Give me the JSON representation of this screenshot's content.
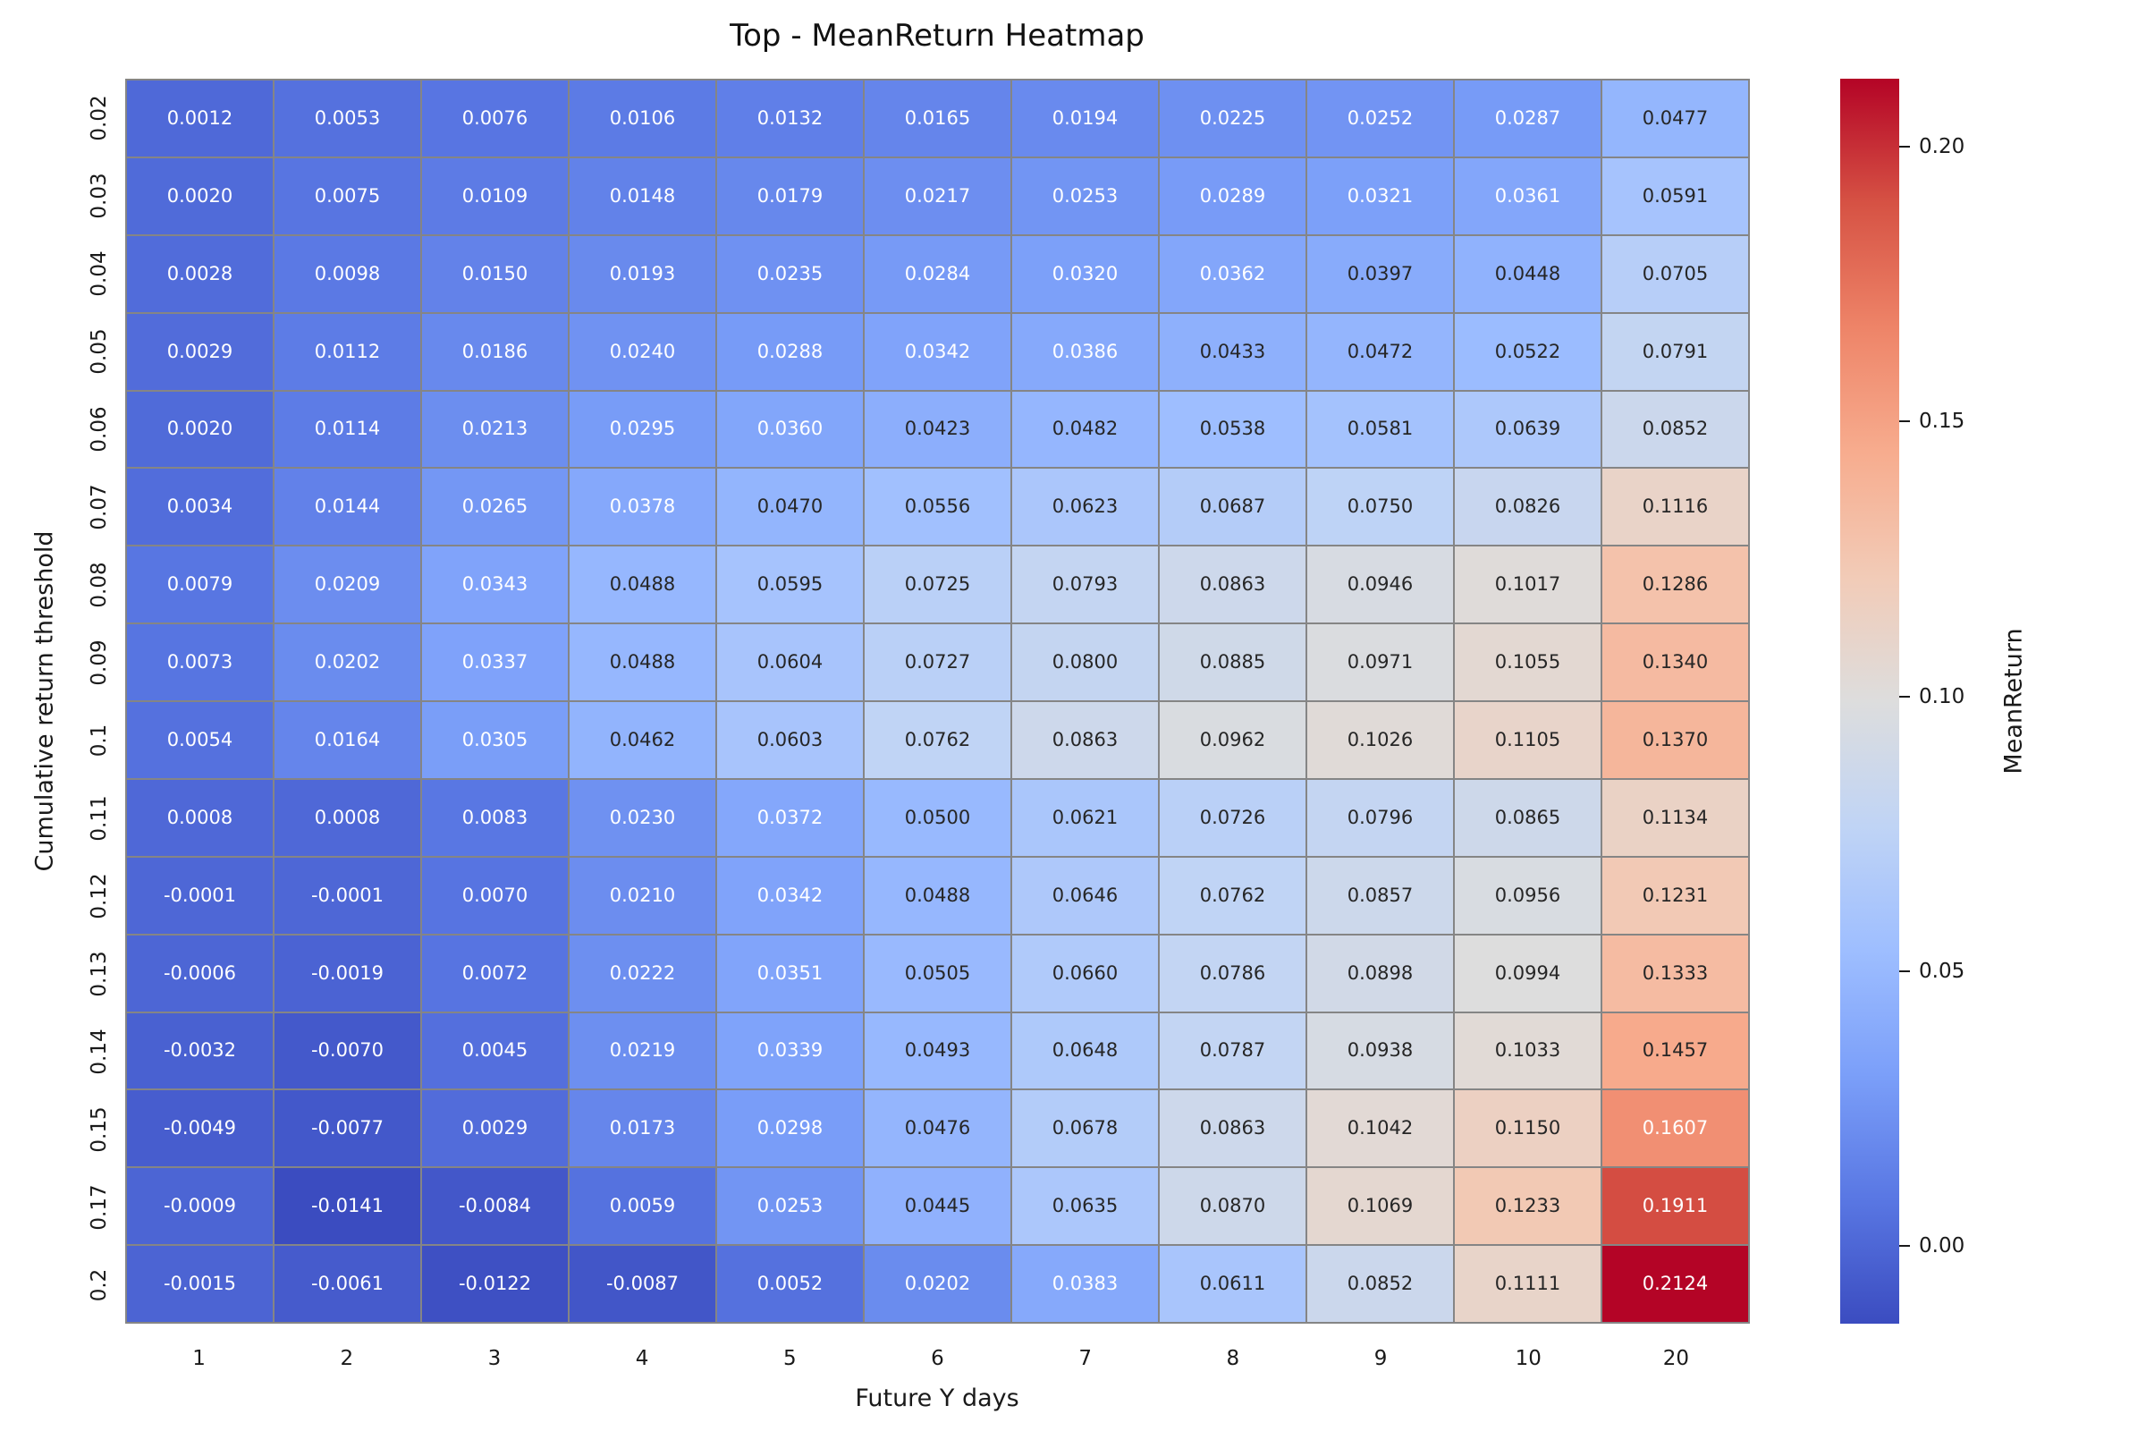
{
  "chart_data": {
    "type": "heatmap",
    "title": "Top - MeanReturn Heatmap",
    "xlabel": "Future Y days",
    "ylabel": "Cumulative return threshold",
    "colorbar_label": "MeanReturn",
    "colorbar_tick_labels": [
      "0.20",
      "0.15",
      "0.10",
      "0.05",
      "0.00"
    ],
    "colorbar_tick_values": [
      0.2,
      0.15,
      0.1,
      0.05,
      0.0
    ],
    "x_categories": [
      "1",
      "2",
      "3",
      "4",
      "5",
      "6",
      "7",
      "8",
      "9",
      "10",
      "20"
    ],
    "y_categories": [
      "0.02",
      "0.03",
      "0.04",
      "0.05",
      "0.06",
      "0.07",
      "0.08",
      "0.09",
      "0.1",
      "0.11",
      "0.12",
      "0.13",
      "0.14",
      "0.15",
      "0.17",
      "0.2"
    ],
    "values": [
      [
        0.0012,
        0.0053,
        0.0076,
        0.0106,
        0.0132,
        0.0165,
        0.0194,
        0.0225,
        0.0252,
        0.0287,
        0.0477
      ],
      [
        0.002,
        0.0075,
        0.0109,
        0.0148,
        0.0179,
        0.0217,
        0.0253,
        0.0289,
        0.0321,
        0.0361,
        0.0591
      ],
      [
        0.0028,
        0.0098,
        0.015,
        0.0193,
        0.0235,
        0.0284,
        0.032,
        0.0362,
        0.0397,
        0.0448,
        0.0705
      ],
      [
        0.0029,
        0.0112,
        0.0186,
        0.024,
        0.0288,
        0.0342,
        0.0386,
        0.0433,
        0.0472,
        0.0522,
        0.0791
      ],
      [
        0.002,
        0.0114,
        0.0213,
        0.0295,
        0.036,
        0.0423,
        0.0482,
        0.0538,
        0.0581,
        0.0639,
        0.0852
      ],
      [
        0.0034,
        0.0144,
        0.0265,
        0.0378,
        0.047,
        0.0556,
        0.0623,
        0.0687,
        0.075,
        0.0826,
        0.1116
      ],
      [
        0.0079,
        0.0209,
        0.0343,
        0.0488,
        0.0595,
        0.0725,
        0.0793,
        0.0863,
        0.0946,
        0.1017,
        0.1286
      ],
      [
        0.0073,
        0.0202,
        0.0337,
        0.0488,
        0.0604,
        0.0727,
        0.08,
        0.0885,
        0.0971,
        0.1055,
        0.134
      ],
      [
        0.0054,
        0.0164,
        0.0305,
        0.0462,
        0.0603,
        0.0762,
        0.0863,
        0.0962,
        0.1026,
        0.1105,
        0.137
      ],
      [
        0.0008,
        0.0008,
        0.0083,
        0.023,
        0.0372,
        0.05,
        0.0621,
        0.0726,
        0.0796,
        0.0865,
        0.1134
      ],
      [
        -0.0001,
        -0.0001,
        0.007,
        0.021,
        0.0342,
        0.0488,
        0.0646,
        0.0762,
        0.0857,
        0.0956,
        0.1231
      ],
      [
        -0.0006,
        -0.0019,
        0.0072,
        0.0222,
        0.0351,
        0.0505,
        0.066,
        0.0786,
        0.0898,
        0.0994,
        0.1333
      ],
      [
        -0.0032,
        -0.007,
        0.0045,
        0.0219,
        0.0339,
        0.0493,
        0.0648,
        0.0787,
        0.0938,
        0.1033,
        0.1457
      ],
      [
        -0.0049,
        -0.0077,
        0.0029,
        0.0173,
        0.0298,
        0.0476,
        0.0678,
        0.0863,
        0.1042,
        0.115,
        0.1607
      ],
      [
        -0.0009,
        -0.0141,
        -0.0084,
        0.0059,
        0.0253,
        0.0445,
        0.0635,
        0.087,
        0.1069,
        0.1233,
        0.1911
      ],
      [
        -0.0015,
        -0.0061,
        -0.0122,
        -0.0087,
        0.0052,
        0.0202,
        0.0383,
        0.0611,
        0.0852,
        0.1111,
        0.2124
      ]
    ],
    "vmin": -0.0141,
    "vmax": 0.2124,
    "value_format_decimals": 4,
    "colormap": "coolwarm",
    "colormap_stops": [
      "#3b4cc0",
      "#5977e3",
      "#7b9ff9",
      "#9ebeff",
      "#c0d4f5",
      "#dddddd",
      "#f2cbb7",
      "#f7ac8e",
      "#ee8468",
      "#d65244",
      "#b40426"
    ],
    "grid_line_color": "#858585",
    "annotation_dark_text_color": "#262626",
    "annotation_light_text_color": "#ffffff",
    "legend_position": "right-colorbar",
    "grid": "cell-borders"
  }
}
